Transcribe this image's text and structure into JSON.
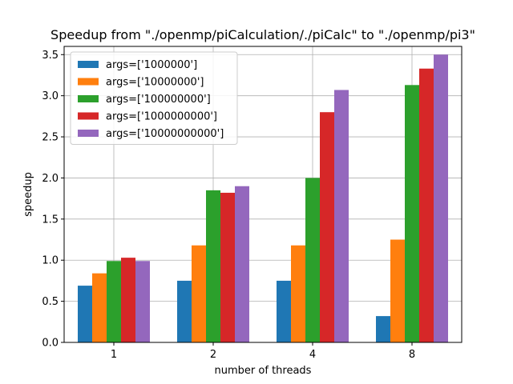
{
  "chart_data": {
    "type": "bar",
    "title": "Speedup from \"./openmp/piCalculation/./piCalc\" to \"./openmp/pi3\"",
    "xlabel": "number of threads",
    "ylabel": "speedup",
    "categories": [
      "1",
      "2",
      "4",
      "8"
    ],
    "ylim": [
      0,
      3.6
    ],
    "yticks": [
      "0.0",
      "0.5",
      "1.0",
      "1.5",
      "2.0",
      "2.5",
      "3.0",
      "3.5"
    ],
    "grid": true,
    "legend_position": "top-left",
    "series": [
      {
        "name": "args=['1000000']",
        "color": "#1f77b4",
        "values": [
          0.69,
          0.75,
          0.75,
          0.32
        ]
      },
      {
        "name": "args=['10000000']",
        "color": "#ff7f0e",
        "values": [
          0.84,
          1.18,
          1.18,
          1.25
        ]
      },
      {
        "name": "args=['100000000']",
        "color": "#2ca02c",
        "values": [
          0.99,
          1.85,
          2.0,
          3.13
        ]
      },
      {
        "name": "args=['1000000000']",
        "color": "#d62728",
        "values": [
          1.03,
          1.82,
          2.8,
          3.33
        ]
      },
      {
        "name": "args=['10000000000']",
        "color": "#9467bd",
        "values": [
          0.99,
          1.9,
          3.07,
          3.5
        ]
      }
    ]
  }
}
